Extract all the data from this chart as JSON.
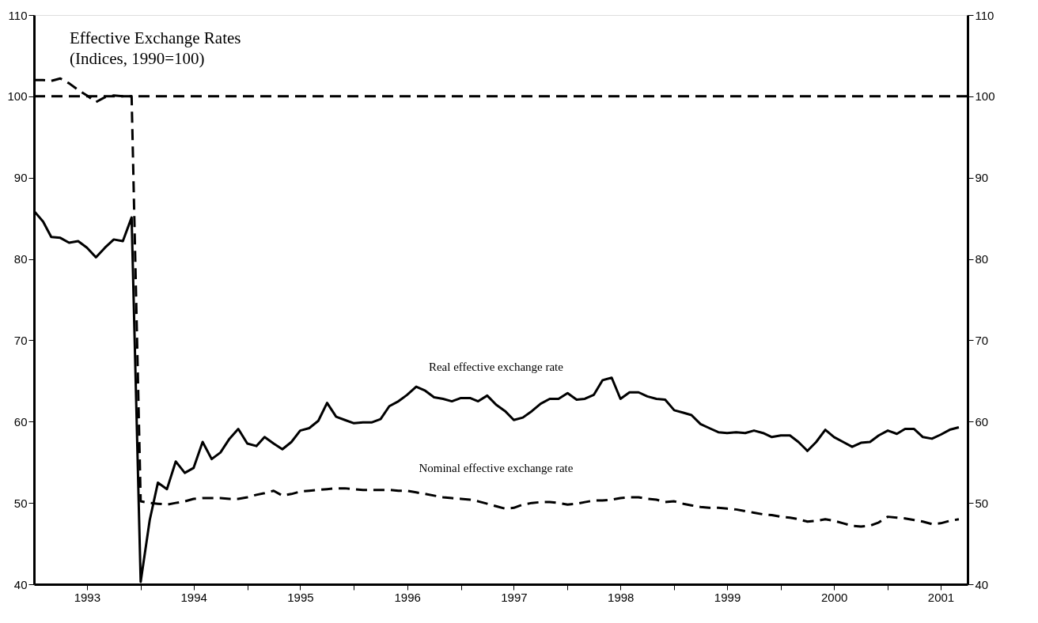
{
  "chart_data": {
    "type": "line",
    "title": "Effective Exchange Rates",
    "subtitle": "(Indices, 1990=100)",
    "x": [
      "1993-01",
      "1993-02",
      "1993-03",
      "1993-04",
      "1993-05",
      "1993-06",
      "1993-07",
      "1993-08",
      "1993-09",
      "1993-10",
      "1993-11",
      "1993-12",
      "1994-01",
      "1994-02",
      "1994-03",
      "1994-04",
      "1994-05",
      "1994-06",
      "1994-07",
      "1994-08",
      "1994-09",
      "1994-10",
      "1994-11",
      "1994-12",
      "1995-01",
      "1995-02",
      "1995-03",
      "1995-04",
      "1995-05",
      "1995-06",
      "1995-07",
      "1995-08",
      "1995-09",
      "1995-10",
      "1995-11",
      "1995-12",
      "1996-01",
      "1996-02",
      "1996-03",
      "1996-04",
      "1996-05",
      "1996-06",
      "1996-07",
      "1996-08",
      "1996-09",
      "1996-10",
      "1996-11",
      "1996-12",
      "1997-01",
      "1997-02",
      "1997-03",
      "1997-04",
      "1997-05",
      "1997-06",
      "1997-07",
      "1997-08",
      "1997-09",
      "1997-10",
      "1997-11",
      "1997-12",
      "1998-01",
      "1998-02",
      "1998-03",
      "1998-04",
      "1998-05",
      "1998-06",
      "1998-07",
      "1998-08",
      "1998-09",
      "1998-10",
      "1998-11",
      "1998-12",
      "1999-01",
      "1999-02",
      "1999-03",
      "1999-04",
      "1999-05",
      "1999-06",
      "1999-07",
      "1999-08",
      "1999-09",
      "1999-10",
      "1999-11",
      "1999-12",
      "2000-01",
      "2000-02",
      "2000-03",
      "2000-04",
      "2000-05",
      "2000-06",
      "2000-07",
      "2000-08",
      "2000-09",
      "2000-10",
      "2000-11",
      "2000-12",
      "2001-01",
      "2001-02",
      "2001-03",
      "2001-04",
      "2001-05",
      "2001-06",
      "2001-07",
      "2001-08",
      "2001-09"
    ],
    "series": [
      {
        "name": "Real effective exchange rate",
        "color": "#000000",
        "line_style": "solid",
        "values": [
          85.9,
          84.6,
          82.7,
          82.6,
          82.0,
          82.2,
          81.4,
          80.2,
          81.4,
          82.4,
          82.2,
          85.1,
          40.3,
          47.9,
          52.5,
          51.7,
          55.1,
          53.7,
          54.3,
          57.5,
          55.4,
          56.2,
          57.9,
          59.1,
          57.3,
          57.0,
          58.1,
          57.3,
          56.6,
          57.5,
          58.9,
          59.2,
          60.1,
          62.3,
          60.6,
          60.2,
          59.8,
          59.9,
          59.9,
          60.3,
          61.9,
          62.5,
          63.3,
          64.3,
          63.8,
          63.0,
          62.8,
          62.5,
          62.9,
          62.9,
          62.5,
          63.2,
          62.1,
          61.3,
          60.2,
          60.5,
          61.3,
          62.2,
          62.8,
          62.8,
          63.5,
          62.7,
          62.8,
          63.3,
          65.1,
          65.4,
          62.8,
          63.6,
          63.6,
          63.1,
          62.8,
          62.7,
          61.4,
          61.1,
          60.8,
          59.7,
          59.2,
          58.7,
          58.6,
          58.7,
          58.6,
          58.9,
          58.6,
          58.1,
          58.3,
          58.3,
          57.5,
          56.4,
          57.5,
          59.0,
          58.1,
          57.5,
          56.9,
          57.4,
          57.5,
          58.3,
          58.9,
          58.5,
          59.1,
          59.1,
          58.1,
          57.9,
          58.4,
          59.0,
          59.3
        ]
      },
      {
        "name": "Nominal effective exchange rate",
        "color": "#000000",
        "line_style": "dashed",
        "values": [
          102.0,
          102.0,
          101.9,
          102.2,
          101.6,
          100.8,
          100.1,
          99.3,
          99.9,
          100.1,
          100.0,
          100.0,
          50.2,
          50.0,
          49.9,
          49.8,
          50.0,
          50.2,
          50.5,
          50.6,
          50.6,
          50.6,
          50.5,
          50.5,
          50.7,
          51.0,
          51.2,
          51.5,
          50.9,
          51.1,
          51.4,
          51.5,
          51.6,
          51.7,
          51.8,
          51.8,
          51.7,
          51.6,
          51.6,
          51.6,
          51.6,
          51.5,
          51.5,
          51.3,
          51.1,
          50.9,
          50.7,
          50.6,
          50.5,
          50.4,
          50.2,
          49.9,
          49.6,
          49.3,
          49.4,
          49.8,
          50.0,
          50.1,
          50.1,
          50.0,
          49.8,
          49.9,
          50.1,
          50.3,
          50.3,
          50.4,
          50.6,
          50.7,
          50.7,
          50.5,
          50.4,
          50.1,
          50.2,
          49.9,
          49.7,
          49.5,
          49.4,
          49.4,
          49.3,
          49.2,
          49.0,
          48.8,
          48.6,
          48.5,
          48.3,
          48.2,
          48.0,
          47.7,
          47.8,
          48.0,
          47.8,
          47.5,
          47.2,
          47.1,
          47.2,
          47.6,
          48.3,
          48.2,
          48.1,
          47.9,
          47.7,
          47.4,
          47.5,
          47.8,
          48.0
        ]
      }
    ],
    "ref_lines": [
      {
        "axis": "y",
        "value": 100,
        "line_style": "dashed",
        "color": "#000000"
      }
    ],
    "xlim": [
      "1993-01-01",
      "2001-10-01"
    ],
    "xticks": [
      {
        "value": "1993-07-01",
        "label": "1993"
      },
      {
        "value": "1994-01-01",
        "label": null
      },
      {
        "value": "1994-07-01",
        "label": "1994"
      },
      {
        "value": "1995-01-01",
        "label": null
      },
      {
        "value": "1995-07-01",
        "label": "1995"
      },
      {
        "value": "1996-01-01",
        "label": null
      },
      {
        "value": "1996-07-01",
        "label": "1996"
      },
      {
        "value": "1997-01-01",
        "label": null
      },
      {
        "value": "1997-07-01",
        "label": "1997"
      },
      {
        "value": "1998-01-01",
        "label": null
      },
      {
        "value": "1998-07-01",
        "label": "1998"
      },
      {
        "value": "1999-01-01",
        "label": null
      },
      {
        "value": "1999-07-01",
        "label": "1999"
      },
      {
        "value": "2000-01-01",
        "label": null
      },
      {
        "value": "2000-07-01",
        "label": "2000"
      },
      {
        "value": "2001-01-01",
        "label": null
      },
      {
        "value": "2001-07-01",
        "label": "2001"
      }
    ],
    "ylim": [
      40,
      110
    ],
    "yticks": [
      40,
      50,
      60,
      70,
      80,
      90,
      100,
      110
    ],
    "y2lim": [
      40,
      110
    ],
    "y2ticks": [
      40,
      50,
      60,
      70,
      80,
      90,
      100,
      110
    ],
    "marker": "none"
  }
}
